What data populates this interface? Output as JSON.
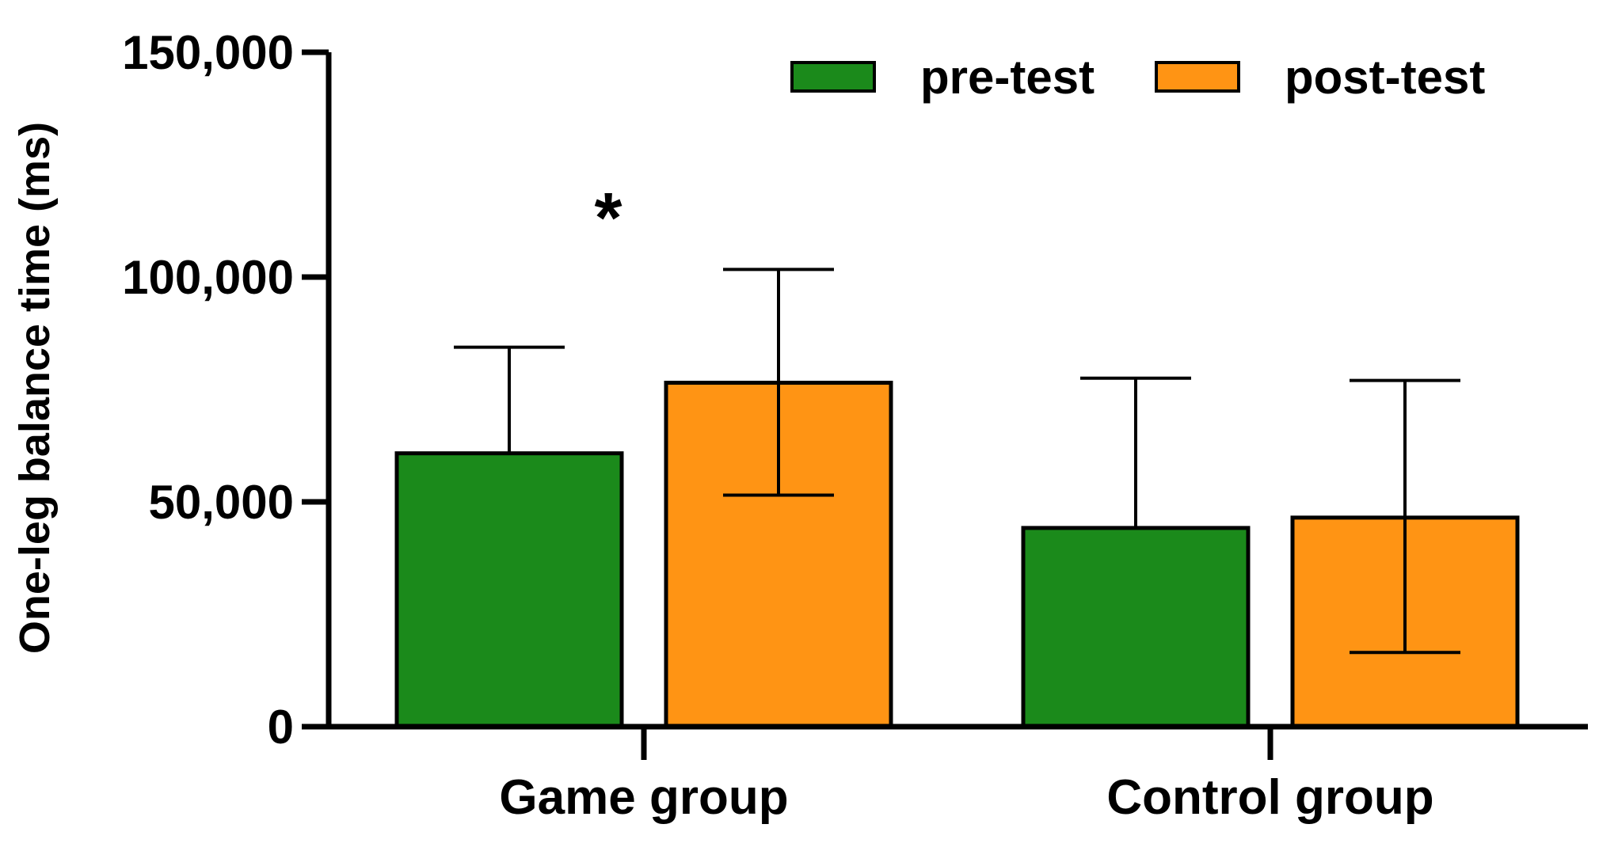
{
  "chart_data": {
    "type": "bar",
    "title": "",
    "xlabel": "",
    "ylabel": "One-leg balance time (ms)",
    "ylim": [
      0,
      150000
    ],
    "yticks": [
      0,
      50000,
      100000,
      150000
    ],
    "ytick_labels": [
      "0",
      "50,000",
      "100,000",
      "150,000"
    ],
    "categories": [
      "Game group",
      "Control group"
    ],
    "series": [
      {
        "name": "pre-test",
        "color": "#1b8a1b",
        "values": [
          60800,
          44200
        ],
        "error_upper": [
          84400,
          77500
        ],
        "error_lower": [
          60800,
          44200
        ]
      },
      {
        "name": "post-test",
        "color": "#ff9414",
        "values": [
          76500,
          46500
        ],
        "error_upper": [
          101700,
          77000
        ],
        "error_lower": [
          51500,
          16500
        ]
      }
    ],
    "legend_position": "top-right",
    "annotations": [
      {
        "text": "*",
        "category": "Game group",
        "y": 118000
      }
    ]
  }
}
